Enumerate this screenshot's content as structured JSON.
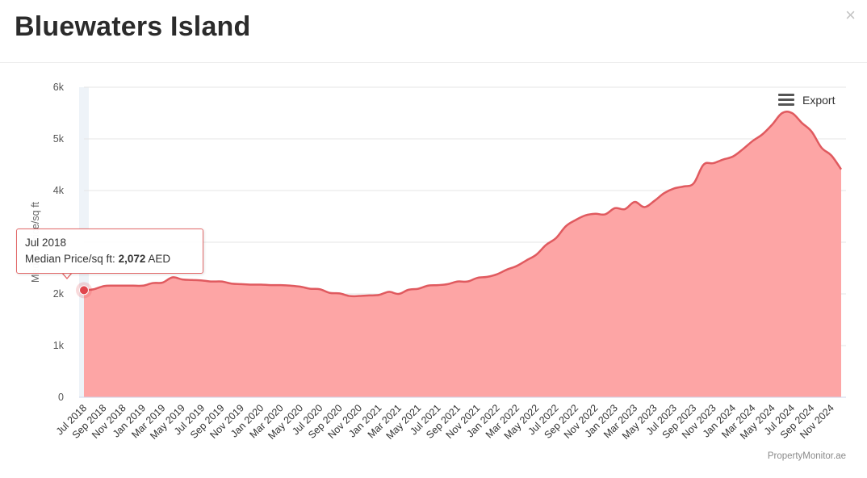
{
  "header": {
    "title": "Bluewaters Island",
    "close_glyph": "×"
  },
  "export": {
    "label": "Export",
    "icon": "menu-icon"
  },
  "tooltip": {
    "date": "Jul 2018",
    "series_label": "Median Price/sq ft: ",
    "value": "2,072",
    "unit": " AED"
  },
  "credits": "PropertyMonitor.ae",
  "colors": {
    "area_fill": "#fda5a5",
    "line": "#e05a5f",
    "marker": "#e0454d",
    "grid": "#e6e6e6"
  },
  "chart_data": {
    "type": "area",
    "title": "Bluewaters Island",
    "ylabel": "Median Price/sq ft",
    "xlabel": "",
    "ylim": [
      0,
      6000
    ],
    "yticks": [
      0,
      1000,
      2000,
      3000,
      4000,
      5000,
      6000
    ],
    "ytick_labels": [
      "0",
      "1k",
      "2k",
      "3k",
      "4k",
      "5k",
      "6k"
    ],
    "grid": true,
    "x": [
      "Jul 2018",
      "Aug 2018",
      "Sep 2018",
      "Oct 2018",
      "Nov 2018",
      "Dec 2018",
      "Jan 2019",
      "Feb 2019",
      "Mar 2019",
      "Apr 2019",
      "May 2019",
      "Jun 2019",
      "Jul 2019",
      "Aug 2019",
      "Sep 2019",
      "Oct 2019",
      "Nov 2019",
      "Dec 2019",
      "Jan 2020",
      "Feb 2020",
      "Mar 2020",
      "Apr 2020",
      "May 2020",
      "Jun 2020",
      "Jul 2020",
      "Aug 2020",
      "Sep 2020",
      "Oct 2020",
      "Nov 2020",
      "Dec 2020",
      "Jan 2021",
      "Feb 2021",
      "Mar 2021",
      "Apr 2021",
      "May 2021",
      "Jun 2021",
      "Jul 2021",
      "Aug 2021",
      "Sep 2021",
      "Oct 2021",
      "Nov 2021",
      "Dec 2021",
      "Jan 2022",
      "Feb 2022",
      "Mar 2022",
      "Apr 2022",
      "May 2022",
      "Jun 2022",
      "Jul 2022",
      "Aug 2022",
      "Sep 2022",
      "Oct 2022",
      "Nov 2022",
      "Dec 2022",
      "Jan 2023",
      "Feb 2023",
      "Mar 2023",
      "Apr 2023",
      "May 2023",
      "Jun 2023",
      "Jul 2023",
      "Aug 2023",
      "Sep 2023",
      "Oct 2023",
      "Nov 2023",
      "Dec 2023",
      "Jan 2024",
      "Feb 2024",
      "Mar 2024",
      "Apr 2024",
      "May 2024",
      "Jun 2024",
      "Jul 2024",
      "Aug 2024",
      "Sep 2024",
      "Oct 2024",
      "Nov 2024",
      "Dec 2024"
    ],
    "x_tick_labels": [
      "Jul 2018",
      "Sep 2018",
      "Nov 2018",
      "Jan 2019",
      "Mar 2019",
      "May 2019",
      "Jul 2019",
      "Sep 2019",
      "Nov 2019",
      "Jan 2020",
      "Mar 2020",
      "May 2020",
      "Jul 2020",
      "Sep 2020",
      "Nov 2020",
      "Jan 2021",
      "Mar 2021",
      "May 2021",
      "Jul 2021",
      "Sep 2021",
      "Nov 2021",
      "Jan 2022",
      "Mar 2022",
      "May 2022",
      "Jul 2022",
      "Sep 2022",
      "Nov 2022",
      "Jan 2023",
      "Mar 2023",
      "May 2023",
      "Jul 2023",
      "Sep 2023",
      "Nov 2023",
      "Jan 2024",
      "Mar 2024",
      "May 2024",
      "Jul 2024",
      "Sep 2024",
      "Nov 2024"
    ],
    "series": [
      {
        "name": "Median Price/sq ft",
        "values": [
          2072,
          2090,
          2150,
          2160,
          2160,
          2160,
          2160,
          2210,
          2220,
          2320,
          2280,
          2270,
          2260,
          2240,
          2240,
          2200,
          2190,
          2180,
          2180,
          2170,
          2170,
          2160,
          2140,
          2100,
          2090,
          2020,
          2010,
          1960,
          1960,
          1970,
          1980,
          2040,
          2000,
          2080,
          2100,
          2160,
          2170,
          2190,
          2240,
          2240,
          2310,
          2330,
          2380,
          2470,
          2540,
          2650,
          2760,
          2950,
          3080,
          3310,
          3430,
          3520,
          3550,
          3540,
          3660,
          3640,
          3780,
          3680,
          3800,
          3950,
          4040,
          4080,
          4140,
          4500,
          4530,
          4600,
          4660,
          4800,
          4960,
          5090,
          5280,
          5500,
          5500,
          5310,
          5140,
          4830,
          4680,
          4410
        ]
      }
    ],
    "highlight": {
      "x": "Jul 2018",
      "value": 2072
    }
  }
}
